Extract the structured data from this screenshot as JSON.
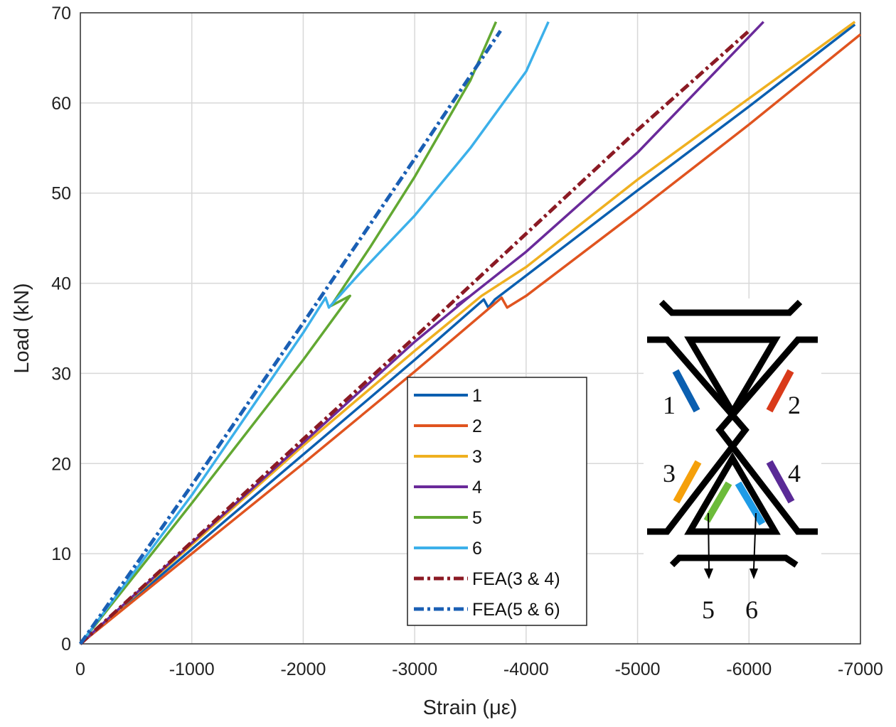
{
  "chart_data": {
    "type": "line",
    "title": "",
    "xlabel": "Strain (με)",
    "ylabel": "Load (kN)",
    "xlim": [
      0,
      -7000
    ],
    "ylim": [
      0,
      70
    ],
    "grid": true,
    "xticks": [
      0,
      -1000,
      -2000,
      -3000,
      -4000,
      -5000,
      -6000,
      -7000
    ],
    "xtick_labels": [
      "0",
      "-1000",
      "-2000",
      "-3000",
      "-4000",
      "-5000",
      "-6000",
      "-7000"
    ],
    "yticks": [
      0,
      10,
      20,
      30,
      40,
      50,
      60,
      70
    ],
    "ytick_labels": [
      "0",
      "10",
      "20",
      "30",
      "40",
      "50",
      "60",
      "70"
    ],
    "legend_position": "center-bottom",
    "series": [
      {
        "name": "1",
        "color": "#0b5fb0",
        "style": "solid",
        "points": [
          [
            0,
            0
          ],
          [
            -1000,
            10.5
          ],
          [
            -2000,
            21
          ],
          [
            -3000,
            31.5
          ],
          [
            -3620,
            38.2
          ],
          [
            -3660,
            37.3
          ],
          [
            -3720,
            38.2
          ],
          [
            -5000,
            50.3
          ],
          [
            -6000,
            59.6
          ],
          [
            -6950,
            68.7
          ]
        ]
      },
      {
        "name": "2",
        "color": "#e0541f",
        "style": "solid",
        "points": [
          [
            0,
            0
          ],
          [
            -1000,
            10
          ],
          [
            -2000,
            20
          ],
          [
            -3000,
            30.2
          ],
          [
            -3780,
            38.4
          ],
          [
            -3830,
            37.3
          ],
          [
            -4000,
            38.6
          ],
          [
            -5000,
            48
          ],
          [
            -6000,
            57.6
          ],
          [
            -7000,
            67.6
          ]
        ]
      },
      {
        "name": "3",
        "color": "#efb020",
        "style": "solid",
        "points": [
          [
            0,
            0
          ],
          [
            -1000,
            11
          ],
          [
            -2000,
            22
          ],
          [
            -3000,
            32.5
          ],
          [
            -3600,
            38.6
          ],
          [
            -4000,
            41.8
          ],
          [
            -5000,
            51.5
          ],
          [
            -6000,
            60.5
          ],
          [
            -6950,
            69
          ]
        ]
      },
      {
        "name": "4",
        "color": "#6a2a9a",
        "style": "solid",
        "points": [
          [
            0,
            0
          ],
          [
            -1000,
            11.2
          ],
          [
            -2000,
            22.3
          ],
          [
            -3000,
            33.5
          ],
          [
            -3500,
            38.6
          ],
          [
            -3380,
            37.6
          ],
          [
            -3500,
            38.6
          ],
          [
            -4000,
            43.5
          ],
          [
            -5000,
            54.5
          ],
          [
            -6130,
            69
          ]
        ]
      },
      {
        "name": "5",
        "color": "#62a832",
        "style": "solid",
        "points": [
          [
            0,
            0
          ],
          [
            -1000,
            15.6
          ],
          [
            -2000,
            31.5
          ],
          [
            -2420,
            38.6
          ],
          [
            -2250,
            37.5
          ],
          [
            -2600,
            44
          ],
          [
            -3000,
            51.8
          ],
          [
            -3500,
            62.5
          ],
          [
            -3730,
            69
          ]
        ]
      },
      {
        "name": "6",
        "color": "#3cb0ea",
        "style": "solid",
        "points": [
          [
            0,
            0
          ],
          [
            -1000,
            16.5
          ],
          [
            -2000,
            34.5
          ],
          [
            -2200,
            38.4
          ],
          [
            -2230,
            37.3
          ],
          [
            -2500,
            41
          ],
          [
            -3000,
            47.5
          ],
          [
            -3500,
            55
          ],
          [
            -4000,
            63.5
          ],
          [
            -4200,
            69
          ]
        ]
      },
      {
        "name": "FEA(3 & 4)",
        "color": "#8b1a24",
        "style": "dashdot",
        "points": [
          [
            0,
            0
          ],
          [
            -1000,
            11.3
          ],
          [
            -2000,
            22.7
          ],
          [
            -3000,
            34
          ],
          [
            -4000,
            45.5
          ],
          [
            -5000,
            57
          ],
          [
            -6000,
            68
          ]
        ]
      },
      {
        "name": "FEA(5 & 6)",
        "color": "#1a5fb4",
        "style": "dashdot",
        "points": [
          [
            0,
            0
          ],
          [
            -1000,
            17.6
          ],
          [
            -2000,
            35.6
          ],
          [
            -3000,
            53.8
          ],
          [
            -3770,
            68
          ]
        ]
      }
    ],
    "inset": {
      "gauge_labels": [
        "1",
        "2",
        "3",
        "4",
        "5",
        "6"
      ]
    }
  }
}
